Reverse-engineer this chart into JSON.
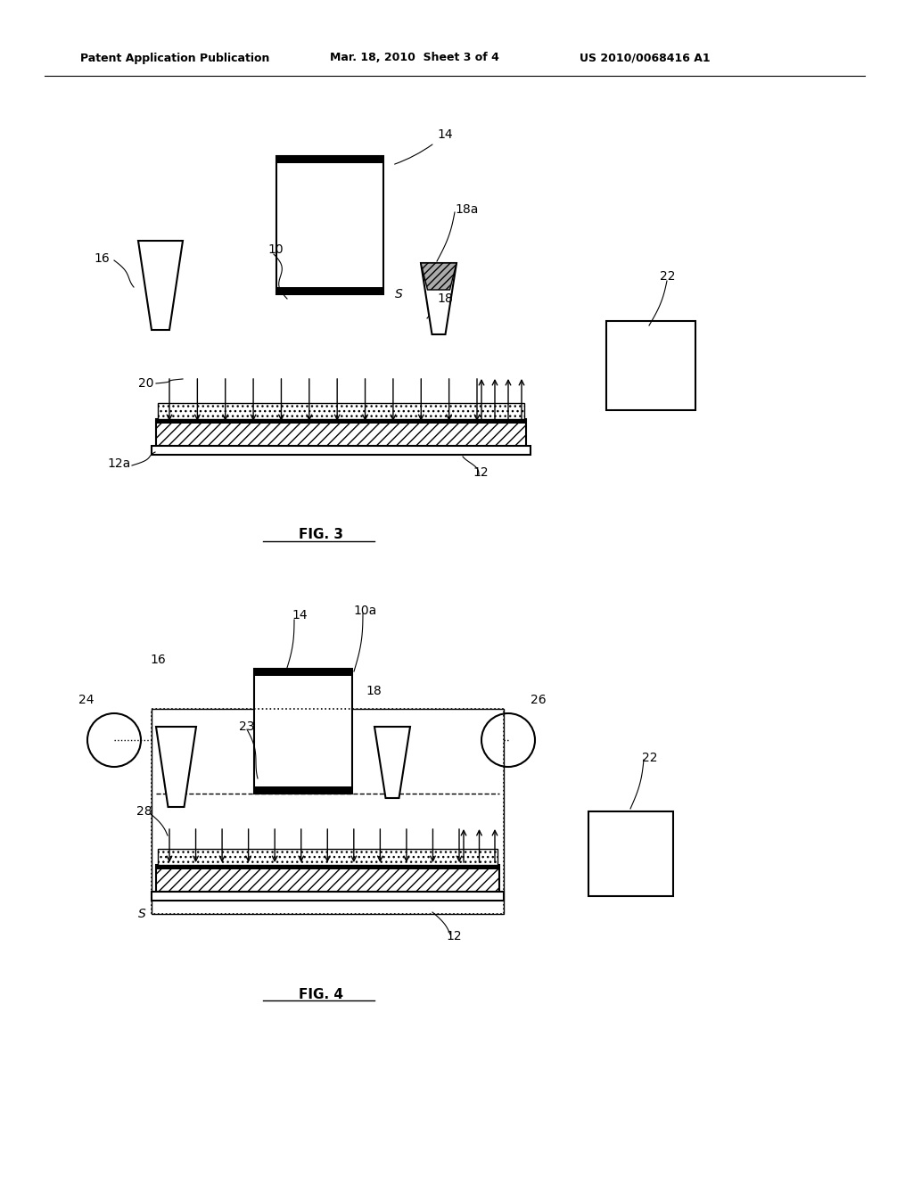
{
  "header_left": "Patent Application Publication",
  "header_mid": "Mar. 18, 2010  Sheet 3 of 4",
  "header_right": "US 2010/0068416 A1",
  "fig3_label": "FIG. 3",
  "fig4_label": "FIG. 4",
  "bg_color": "#ffffff",
  "line_color": "#000000",
  "hatch_color": "#555555"
}
